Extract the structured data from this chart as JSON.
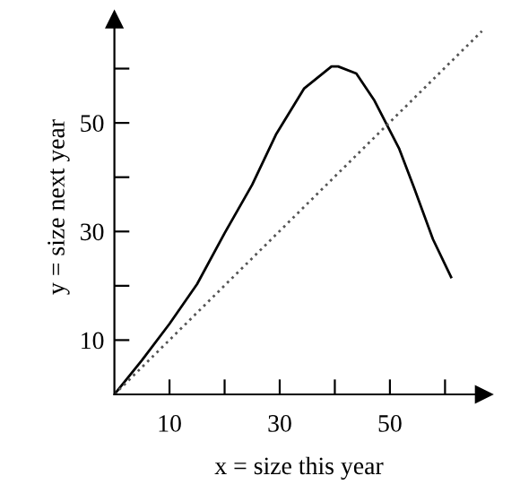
{
  "chart_data": {
    "type": "line",
    "xlabel": "x = size this year",
    "ylabel": "y = size next year",
    "xlim": [
      0,
      67
    ],
    "ylim": [
      0,
      69
    ],
    "xticks": [
      {
        "value": 10,
        "label": "10"
      },
      {
        "value": 20,
        "label": null
      },
      {
        "value": 30,
        "label": "30"
      },
      {
        "value": 40,
        "label": null
      },
      {
        "value": 50,
        "label": "50"
      },
      {
        "value": 60,
        "label": null
      }
    ],
    "yticks": [
      {
        "value": 10,
        "label": "10"
      },
      {
        "value": 20,
        "label": null
      },
      {
        "value": 30,
        "label": "30"
      },
      {
        "value": 40,
        "label": null
      },
      {
        "value": 50,
        "label": "50"
      },
      {
        "value": 60,
        "label": null
      }
    ],
    "grid": false,
    "legend": false,
    "marker": "none",
    "series": [
      {
        "color": "#000000",
        "line_style": "solid",
        "x": [
          0,
          5,
          10,
          15,
          20,
          25,
          29.4,
          34.4,
          39.4,
          40.6,
          43.9,
          47.2,
          51.7,
          54.4,
          57.8,
          61.1
        ],
        "values": [
          0,
          6.3,
          13,
          20.3,
          29.7,
          38.6,
          48,
          56.3,
          60.4,
          60.4,
          59.1,
          54.1,
          45.2,
          38,
          28.6,
          21.6
        ]
      },
      {
        "color": "#555555",
        "line_style": "dotted",
        "x": [
          0,
          66.7
        ],
        "values": [
          0,
          66.9
        ]
      }
    ]
  }
}
